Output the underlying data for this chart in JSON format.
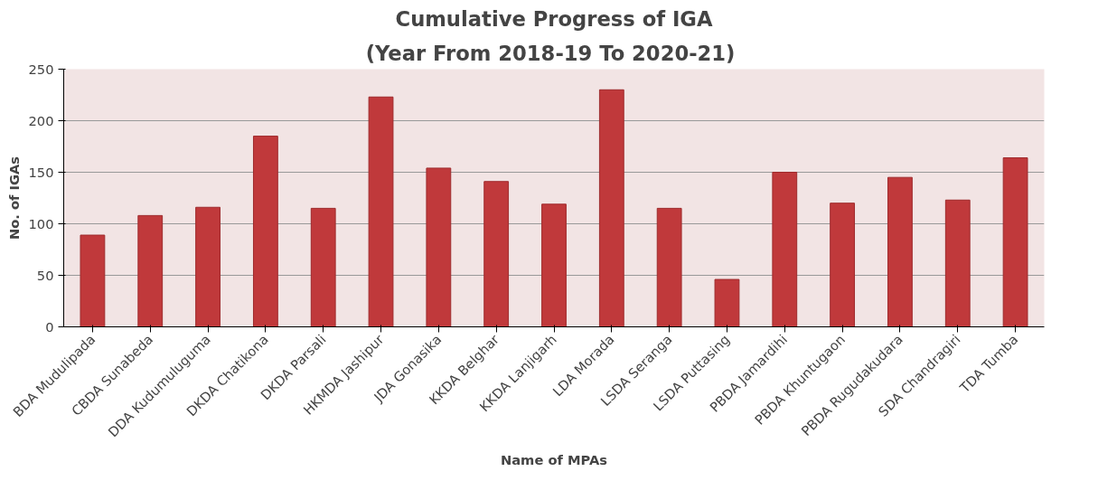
{
  "chart_data": {
    "type": "bar",
    "title": "Cumulative Progress of IGA",
    "subtitle": "(Year From 2018-19 To  2020-21)",
    "xlabel": "Name of MPAs",
    "ylabel": "No. of IGAs",
    "categories": [
      "BDA Mudulipada",
      "CBDA Sunabeda",
      "DDA Kudumuluguma",
      "DKDA Chatikona",
      "DKDA Parsali",
      "HKMDA Jashipur",
      "JDA Gonasika",
      "KKDA Belghar",
      "KKDA Lanjigarh",
      "LDA Morada",
      "LSDA Seranga",
      "LSDA Puttasing",
      "PBDA Jamardihi",
      "PBDA Khuntugaon",
      "PBDA Rugudakudara",
      "SDA Chandragiri",
      "TDA Tumba"
    ],
    "values": [
      89,
      108,
      116,
      185,
      115,
      223,
      154,
      141,
      119,
      230,
      115,
      46,
      150,
      120,
      145,
      123,
      164
    ],
    "color": "#c0393b",
    "ylim": [
      0,
      250
    ],
    "yticks": [
      0,
      50,
      100,
      150,
      200,
      250
    ],
    "grid": "y"
  }
}
